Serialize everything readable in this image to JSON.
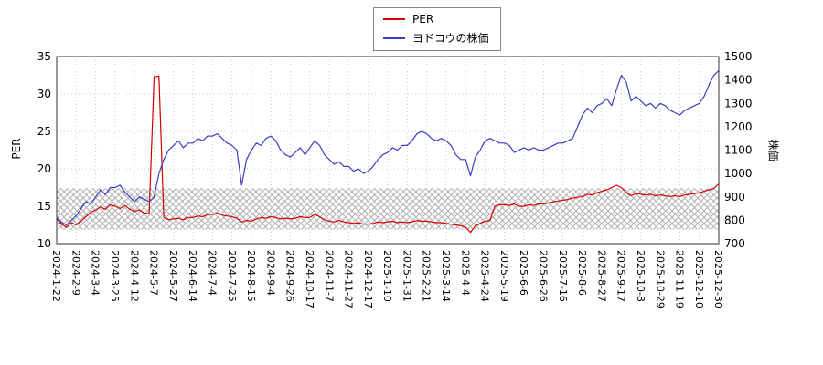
{
  "legend": {
    "items": [
      {
        "label": "PER"
      },
      {
        "label": "ヨドコウの株価"
      }
    ]
  },
  "colors": {
    "per_line": "#d40000",
    "price_line": "#3a3fbf",
    "grid": "#c9c9c9",
    "band_hatch": "#b0b0b0",
    "plot_border": "#333333",
    "tick_text": "#000000"
  },
  "chart_data": {
    "type": "line",
    "title": "",
    "legend_position": "top-center",
    "grid": true,
    "left_axis": {
      "label": "PER",
      "min": 10,
      "max": 35,
      "ticks": [
        10,
        15,
        20,
        25,
        30,
        35
      ]
    },
    "right_axis": {
      "label": "株価",
      "min": 700,
      "max": 1500,
      "ticks": [
        700,
        800,
        900,
        1000,
        1100,
        1200,
        1300,
        1400,
        1500
      ]
    },
    "band": {
      "axis": "left",
      "from": 11.9,
      "to": 17.4,
      "style": "crosshatch"
    },
    "x_tick_labels": [
      "2024-1-22",
      "2024-2-9",
      "2024-3-4",
      "2024-3-25",
      "2024-4-12",
      "2024-5-7",
      "2024-5-27",
      "2024-6-14",
      "2024-7-4",
      "2024-7-25",
      "2024-8-15",
      "2024-9-4",
      "2024-9-26",
      "2024-10-17",
      "2024-11-7",
      "2024-11-27",
      "2024-12-17",
      "2025-1-10",
      "2025-1-31",
      "2025-2-21",
      "2025-3-14",
      "2025-4-4",
      "2025-4-24",
      "2025-5-19",
      "2025-6-6",
      "2025-6-26",
      "2025-7-16",
      "2025-8-6",
      "2025-8-27",
      "2025-9-17",
      "2025-10-8",
      "2025-10-29",
      "2025-11-19",
      "2025-12-10",
      "2025-12-30"
    ],
    "points_per_tick": 4,
    "series": [
      {
        "name": "PER",
        "axis": "left",
        "color": "#d40000",
        "values": [
          13.3,
          12.6,
          12.2,
          12.8,
          12.5,
          13.0,
          13.6,
          14.2,
          14.5,
          14.9,
          14.6,
          15.2,
          15.0,
          14.7,
          15.1,
          14.6,
          14.3,
          14.5,
          14.1,
          14.0,
          32.3,
          32.4,
          13.5,
          13.2,
          13.3,
          13.4,
          13.2,
          13.5,
          13.5,
          13.7,
          13.6,
          13.9,
          13.9,
          14.1,
          13.8,
          13.7,
          13.6,
          13.4,
          12.9,
          13.1,
          13.0,
          13.3,
          13.5,
          13.4,
          13.6,
          13.5,
          13.3,
          13.4,
          13.3,
          13.4,
          13.6,
          13.5,
          13.5,
          13.9,
          13.6,
          13.2,
          13.0,
          12.9,
          13.1,
          12.9,
          12.8,
          12.7,
          12.8,
          12.6,
          12.6,
          12.7,
          12.9,
          12.8,
          12.9,
          13.0,
          12.8,
          12.9,
          12.8,
          12.9,
          13.1,
          13.0,
          13.0,
          12.9,
          12.8,
          12.8,
          12.7,
          12.6,
          12.5,
          12.4,
          12.2,
          11.5,
          12.4,
          12.7,
          13.0,
          13.1,
          15.0,
          15.2,
          15.2,
          15.1,
          15.3,
          15.0,
          15.0,
          15.2,
          15.1,
          15.3,
          15.3,
          15.4,
          15.6,
          15.7,
          15.8,
          15.9,
          16.1,
          16.2,
          16.3,
          16.6,
          16.5,
          16.8,
          17.0,
          17.2,
          17.5,
          17.8,
          17.5,
          16.8,
          16.4,
          16.7,
          16.6,
          16.5,
          16.6,
          16.4,
          16.5,
          16.4,
          16.3,
          16.4,
          16.3,
          16.5,
          16.6,
          16.7,
          16.8,
          17.0,
          17.2,
          17.4,
          18.0
        ]
      },
      {
        "name": "ヨドコウの株価",
        "axis": "right",
        "color": "#3a3fbf",
        "values": [
          810,
          790,
          780,
          800,
          820,
          850,
          880,
          870,
          900,
          930,
          910,
          940,
          940,
          950,
          920,
          900,
          880,
          900,
          890,
          880,
          900,
          1000,
          1060,
          1100,
          1120,
          1140,
          1110,
          1130,
          1130,
          1150,
          1140,
          1160,
          1160,
          1170,
          1150,
          1130,
          1120,
          1100,
          950,
          1060,
          1100,
          1130,
          1120,
          1150,
          1160,
          1140,
          1100,
          1080,
          1070,
          1090,
          1110,
          1080,
          1110,
          1140,
          1120,
          1080,
          1060,
          1040,
          1050,
          1030,
          1030,
          1010,
          1020,
          1000,
          1010,
          1030,
          1060,
          1080,
          1090,
          1110,
          1100,
          1120,
          1120,
          1140,
          1170,
          1180,
          1170,
          1150,
          1140,
          1150,
          1140,
          1120,
          1080,
          1060,
          1060,
          990,
          1070,
          1100,
          1140,
          1150,
          1140,
          1130,
          1130,
          1120,
          1090,
          1100,
          1110,
          1100,
          1110,
          1100,
          1100,
          1110,
          1120,
          1130,
          1130,
          1140,
          1150,
          1200,
          1250,
          1280,
          1260,
          1290,
          1300,
          1320,
          1290,
          1360,
          1420,
          1390,
          1310,
          1330,
          1310,
          1290,
          1300,
          1280,
          1300,
          1290,
          1270,
          1260,
          1250,
          1270,
          1280,
          1290,
          1300,
          1330,
          1380,
          1420,
          1440
        ]
      }
    ]
  }
}
